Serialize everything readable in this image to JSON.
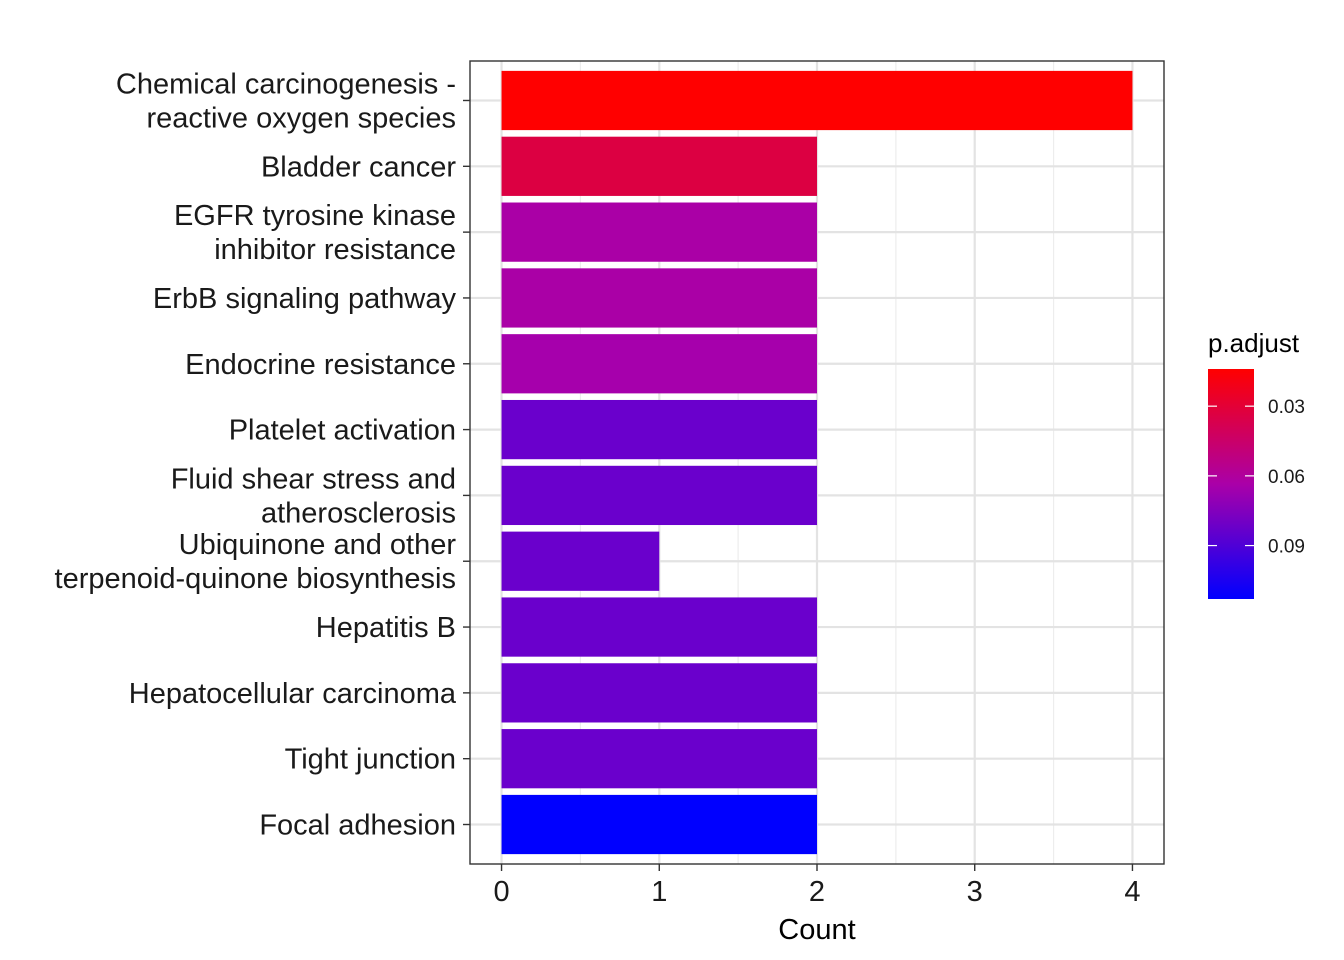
{
  "chart_data": {
    "type": "bar",
    "orientation": "horizontal",
    "categories": [
      "Chemical carcinogenesis - reactive oxygen species",
      "Bladder cancer",
      "EGFR tyrosine kinase inhibitor resistance",
      "ErbB signaling pathway",
      "Endocrine resistance",
      "Platelet activation",
      "Fluid shear stress and atherosclerosis",
      "Ubiquinone and other terpenoid-quinone biosynthesis",
      "Hepatitis B",
      "Hepatocellular carcinoma",
      "Tight junction",
      "Focal adhesion"
    ],
    "category_lines": [
      [
        "Chemical carcinogenesis -",
        "reactive oxygen species"
      ],
      [
        "Bladder cancer"
      ],
      [
        "EGFR tyrosine kinase",
        "inhibitor resistance"
      ],
      [
        "ErbB signaling pathway"
      ],
      [
        "Endocrine resistance"
      ],
      [
        "Platelet activation"
      ],
      [
        "Fluid shear stress and",
        "atherosclerosis"
      ],
      [
        "Ubiquinone and other",
        "terpenoid-quinone biosynthesis"
      ],
      [
        "Hepatitis B"
      ],
      [
        "Hepatocellular carcinoma"
      ],
      [
        "Tight junction"
      ],
      [
        "Focal adhesion"
      ]
    ],
    "values": [
      4,
      2,
      2,
      2,
      2,
      2,
      2,
      1,
      2,
      2,
      2,
      2
    ],
    "p_adjust": [
      0.015,
      0.045,
      0.072,
      0.072,
      0.074,
      0.096,
      0.096,
      0.096,
      0.096,
      0.096,
      0.096,
      0.12
    ],
    "bar_colors": [
      "#FF0000",
      "#DC0042",
      "#AA00A6",
      "#AA00A6",
      "#A600AC",
      "#6A00CC",
      "#6A00CC",
      "#6A00CC",
      "#6A00CC",
      "#6A00CC",
      "#6A00CC",
      "#0000FF"
    ],
    "xlabel": "Count",
    "ylabel": "",
    "xlim": [
      -0.2,
      4.2
    ],
    "x_ticks": [
      0,
      1,
      2,
      3,
      4
    ],
    "grid": true,
    "legend": {
      "title": "p.adjust",
      "position": "right",
      "gradient_low_color": "#FF0000",
      "gradient_high_color": "#0000FF",
      "range": [
        0.014,
        0.113
      ],
      "ticks": [
        {
          "value": 0.03,
          "label": "0.03"
        },
        {
          "value": 0.06,
          "label": "0.06"
        },
        {
          "value": 0.09,
          "label": "0.09"
        }
      ]
    }
  }
}
